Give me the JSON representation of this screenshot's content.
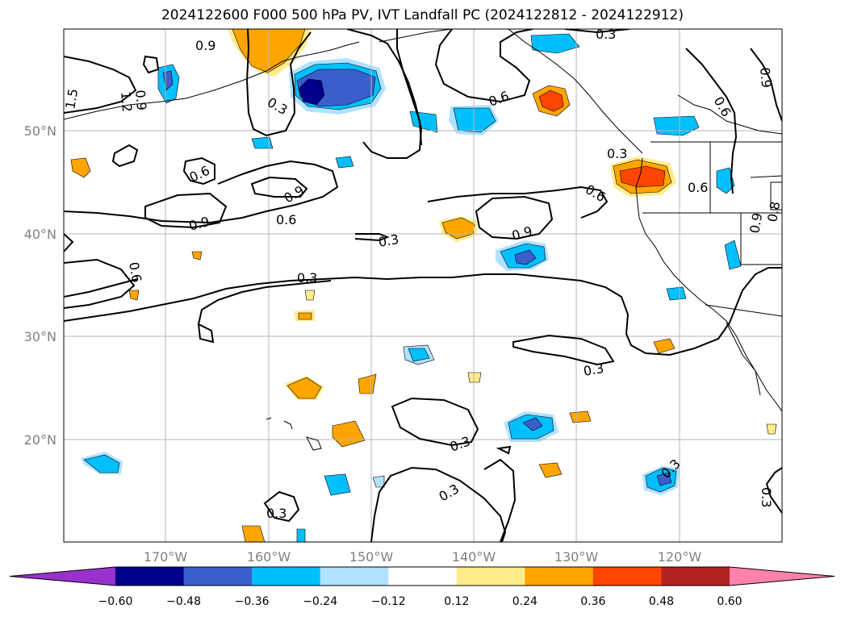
{
  "title": "2024122600 F000 500 hPa PV, IVT Landfall PC (2024122812 - 2024122912)",
  "lat_ticks": [
    {
      "label": "50°N",
      "lat": 50
    },
    {
      "label": "40°N",
      "lat": 40
    },
    {
      "label": "30°N",
      "lat": 30
    },
    {
      "label": "20°N",
      "lat": 20
    }
  ],
  "lon_ticks": [
    {
      "label": "170°W",
      "lon": -170
    },
    {
      "label": "160°W",
      "lon": -160
    },
    {
      "label": "150°W",
      "lon": -150
    },
    {
      "label": "140°W",
      "lon": -140
    },
    {
      "label": "130°W",
      "lon": -130
    },
    {
      "label": "120°W",
      "lon": -120
    }
  ],
  "colorbar": {
    "levels": [
      "−0.60",
      "−0.48",
      "−0.36",
      "−0.24",
      "−0.12",
      "0.12",
      "0.24",
      "0.36",
      "0.48",
      "0.60"
    ],
    "colors": [
      "#9932cc",
      "#00008b",
      "#3a5fcd",
      "#00bfff",
      "#b0e2ff",
      "#ffffff",
      "#ffec8b",
      "#ffa500",
      "#ff4500",
      "#b22222",
      "#ff82ab"
    ]
  },
  "contour_labels": [
    "0.9",
    "0.3",
    "1.5",
    "1.2",
    "0.9",
    "0.6",
    "0.6",
    "0.9",
    "0.9",
    "0.6",
    "0.3",
    "0.9",
    "0.6",
    "0.3",
    "0.6",
    "0.9",
    "0.3",
    "0.6",
    "0.3",
    "0.9",
    "0.8",
    "0.6",
    "0.3",
    "0.3",
    "0.3",
    "0.3",
    "0.3",
    "0.3"
  ]
}
